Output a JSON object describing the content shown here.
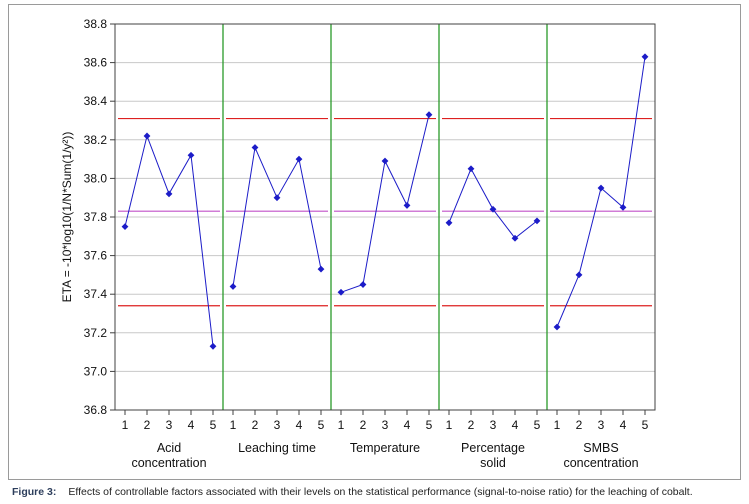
{
  "chart_data": {
    "type": "line",
    "ylabel": "ETA = -10*log10(1/N*Sum(1/y²))",
    "ylim": [
      36.8,
      38.8
    ],
    "yticks": [
      "36.8",
      "37.0",
      "37.2",
      "37.4",
      "37.6",
      "37.8",
      "38.0",
      "38.2",
      "38.4",
      "38.6",
      "38.8"
    ],
    "grid": true,
    "levels": [
      "1",
      "2",
      "3",
      "4",
      "5"
    ],
    "reference_lines": {
      "mean": 37.83,
      "upper": 38.31,
      "lower": 37.34
    },
    "colors": {
      "series": "#1c1cc8",
      "mean_line": "#c050c8",
      "limit_lines": "#dd2020",
      "separators": "#2a9a2a",
      "grid": "#c8c8c8"
    },
    "factors": [
      {
        "label": "Acid concentration",
        "values": [
          37.75,
          38.22,
          37.92,
          38.12,
          37.13
        ]
      },
      {
        "label": "Leaching time",
        "values": [
          37.44,
          38.16,
          37.9,
          38.1,
          37.53
        ]
      },
      {
        "label": "Temperature",
        "values": [
          37.41,
          37.45,
          38.09,
          37.86,
          38.33
        ]
      },
      {
        "label": "Percentage solid",
        "values": [
          37.77,
          38.05,
          37.84,
          37.69,
          37.78
        ]
      },
      {
        "label": "SMBS concentration",
        "values": [
          37.23,
          37.5,
          37.95,
          37.85,
          38.63
        ]
      }
    ]
  },
  "caption": {
    "label": "Figure 3:",
    "text": "Effects of controllable factors associated with their levels on the statistical performance (signal-to-noise ratio) for the leaching of cobalt."
  }
}
